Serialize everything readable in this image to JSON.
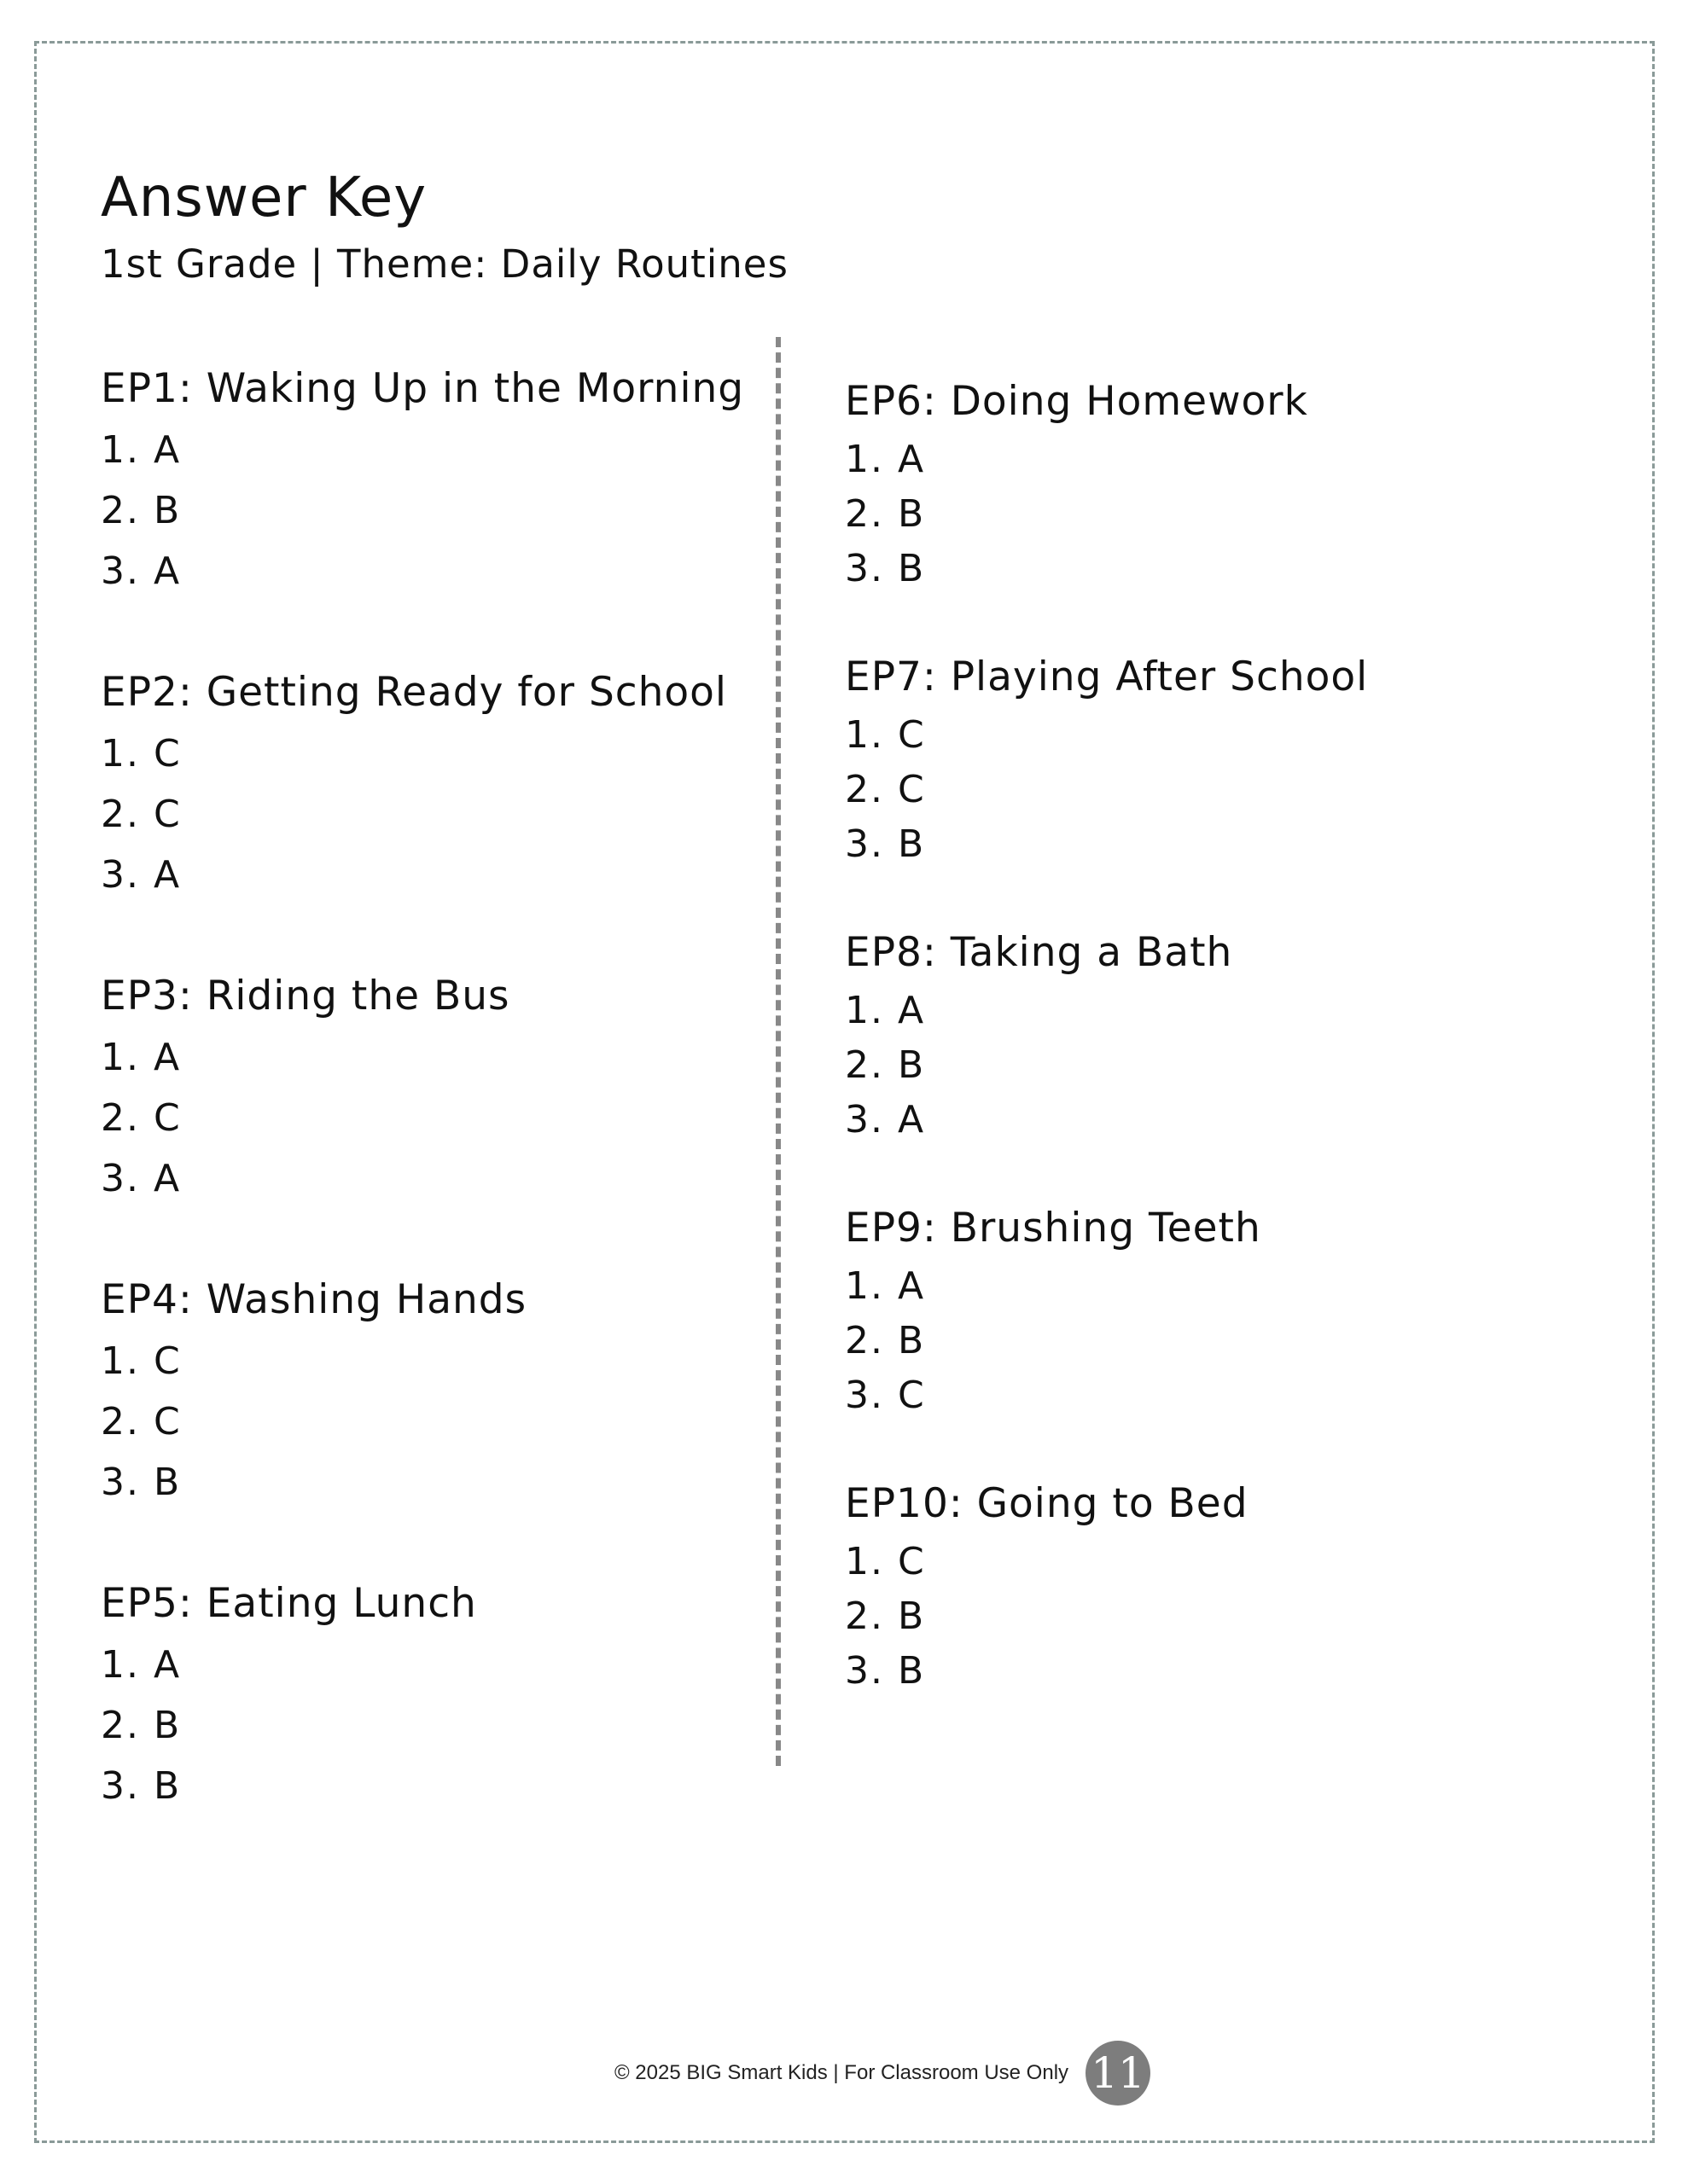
{
  "header": {
    "title": "Answer Key",
    "subtitle": "1st Grade | Theme: Daily Routines"
  },
  "left_column": [
    {
      "title": "EP1: Waking Up in the Morning",
      "answers": [
        "1. A",
        "2. B",
        "3. A"
      ]
    },
    {
      "title": "EP2: Getting Ready for School",
      "answers": [
        "1. C",
        "2. C",
        "3. A"
      ]
    },
    {
      "title": "EP3: Riding the Bus",
      "answers": [
        "1. A",
        "2. C",
        "3. A"
      ]
    },
    {
      "title": "EP4: Washing Hands",
      "answers": [
        "1. C",
        "2. C",
        "3. B"
      ]
    },
    {
      "title": "EP5: Eating Lunch",
      "answers": [
        "1. A",
        "2. B",
        "3. B"
      ]
    }
  ],
  "right_column": [
    {
      "title": "EP6: Doing Homework",
      "answers": [
        "1. A",
        "2. B",
        "3. B"
      ]
    },
    {
      "title": "EP7: Playing After School",
      "answers": [
        "1. C",
        "2. C",
        "3. B"
      ]
    },
    {
      "title": "EP8: Taking a Bath",
      "answers": [
        "1. A",
        "2. B",
        "3. A"
      ]
    },
    {
      "title": "EP9: Brushing Teeth",
      "answers": [
        "1. A",
        "2. B",
        "3. C"
      ]
    },
    {
      "title": "EP10: Going to Bed",
      "answers": [
        "1. C",
        "2. B",
        "3. B"
      ]
    }
  ],
  "footer": {
    "text": "© 2025 BIG Smart Kids | For Classroom Use Only",
    "page_number": "11"
  },
  "colors": {
    "border": "#8a9a98",
    "divider": "#888888",
    "page_badge": "#7d7d7d"
  }
}
